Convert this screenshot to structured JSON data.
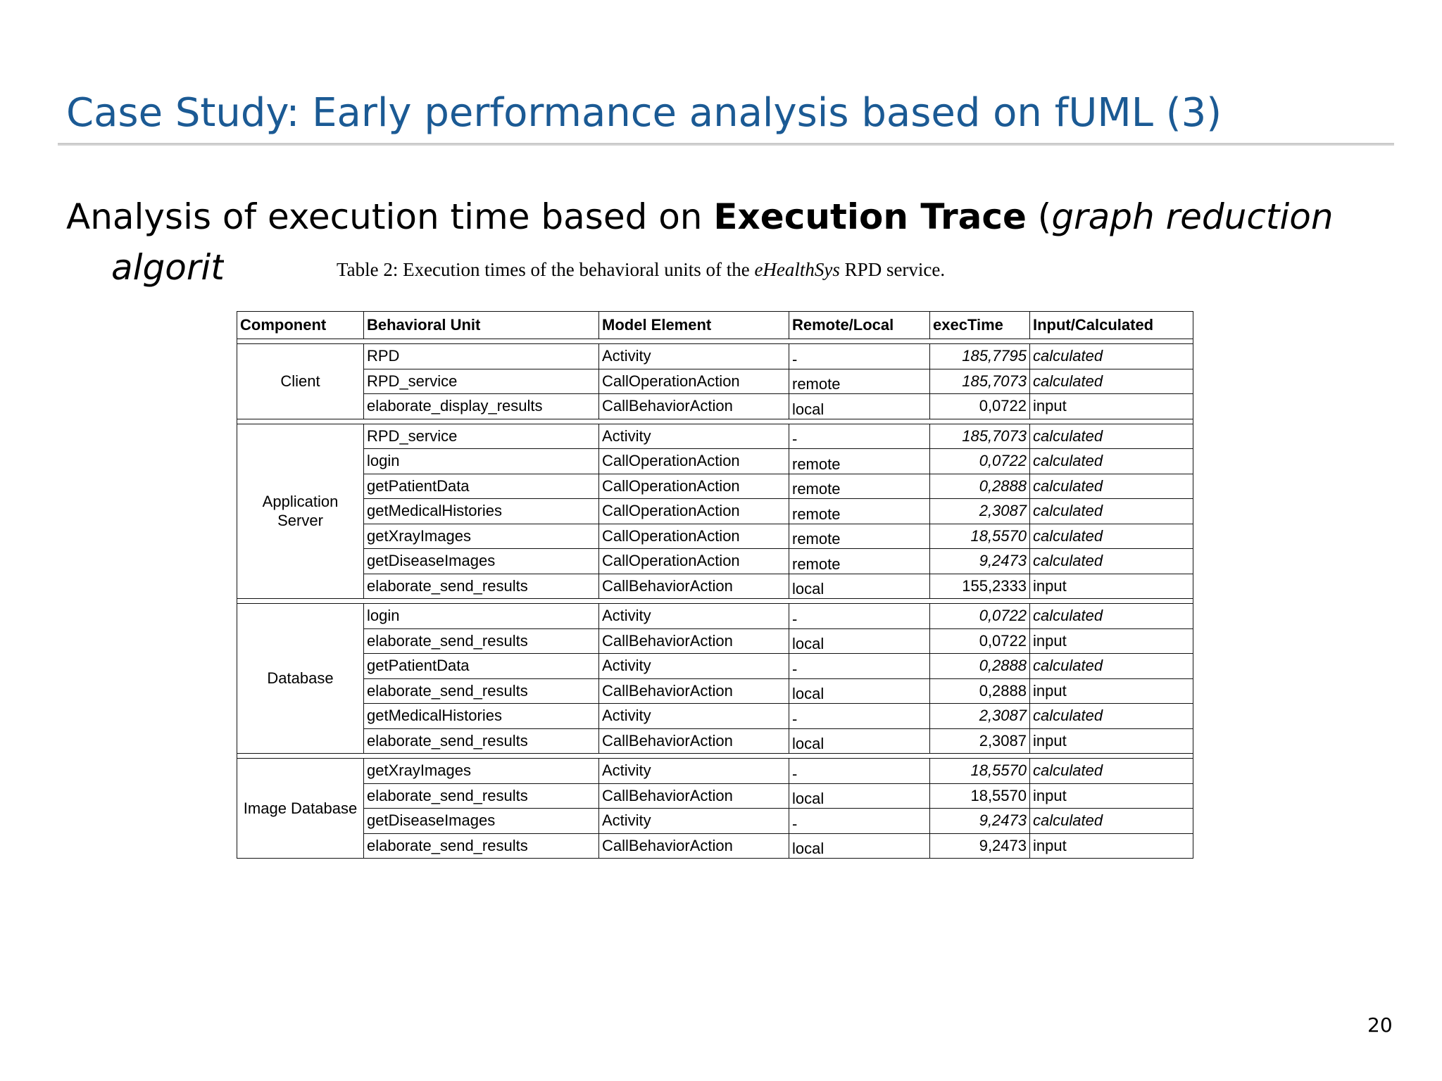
{
  "slide": {
    "title": "Case Study: Early performance analysis based on fUML  (3)",
    "subtitle": {
      "prefix": "Analysis of execution time based on ",
      "bold": "Execution Trace",
      "open_paren": " (",
      "italic": "graph reduction",
      "line2": "algorit"
    },
    "page_number": "20"
  },
  "figure": {
    "caption_prefix": "Table 2: Execution times of the behavioral units of the ",
    "caption_italic": "eHealthSys",
    "caption_suffix": " RPD service.",
    "headers": [
      "Component",
      "Behavioral Unit",
      "Model Element",
      "Remote/Local",
      "execTime",
      "Input/Calculated"
    ],
    "groups": [
      {
        "component": "Client",
        "rows": [
          {
            "unit": "RPD",
            "element": "Activity",
            "rl": "-",
            "time": "185,7795",
            "ic": "calculated"
          },
          {
            "unit": "RPD_service",
            "element": "CallOperationAction",
            "rl": "remote",
            "time": "185,7073",
            "ic": "calculated"
          },
          {
            "unit": "elaborate_display_results",
            "element": "CallBehaviorAction",
            "rl": "local",
            "time": "0,0722",
            "ic": "input"
          }
        ]
      },
      {
        "component": "Application Server",
        "rows": [
          {
            "unit": "RPD_service",
            "element": "Activity",
            "rl": "-",
            "time": "185,7073",
            "ic": "calculated"
          },
          {
            "unit": "login",
            "element": "CallOperationAction",
            "rl": "remote",
            "time": "0,0722",
            "ic": "calculated"
          },
          {
            "unit": "getPatientData",
            "element": "CallOperationAction",
            "rl": "remote",
            "time": "0,2888",
            "ic": "calculated"
          },
          {
            "unit": "getMedicalHistories",
            "element": "CallOperationAction",
            "rl": "remote",
            "time": "2,3087",
            "ic": "calculated"
          },
          {
            "unit": "getXrayImages",
            "element": "CallOperationAction",
            "rl": "remote",
            "time": "18,5570",
            "ic": "calculated"
          },
          {
            "unit": "getDiseaseImages",
            "element": "CallOperationAction",
            "rl": "remote",
            "time": "9,2473",
            "ic": "calculated"
          },
          {
            "unit": "elaborate_send_results",
            "element": "CallBehaviorAction",
            "rl": "local",
            "time": "155,2333",
            "ic": "input"
          }
        ]
      },
      {
        "component": "Database",
        "rows": [
          {
            "unit": "login",
            "element": "Activity",
            "rl": "-",
            "time": "0,0722",
            "ic": "calculated"
          },
          {
            "unit": "elaborate_send_results",
            "element": "CallBehaviorAction",
            "rl": "local",
            "time": "0,0722",
            "ic": "input"
          },
          {
            "unit": "getPatientData",
            "element": "Activity",
            "rl": "-",
            "time": "0,2888",
            "ic": "calculated"
          },
          {
            "unit": "elaborate_send_results",
            "element": "CallBehaviorAction",
            "rl": "local",
            "time": "0,2888",
            "ic": "input"
          },
          {
            "unit": "getMedicalHistories",
            "element": "Activity",
            "rl": "-",
            "time": "2,3087",
            "ic": "calculated"
          },
          {
            "unit": "elaborate_send_results",
            "element": "CallBehaviorAction",
            "rl": "local",
            "time": "2,3087",
            "ic": "input"
          }
        ]
      },
      {
        "component": "Image Database",
        "rows": [
          {
            "unit": "getXrayImages",
            "element": "Activity",
            "rl": "-",
            "time": "18,5570",
            "ic": "calculated"
          },
          {
            "unit": "elaborate_send_results",
            "element": "CallBehaviorAction",
            "rl": "local",
            "time": "18,5570",
            "ic": "input"
          },
          {
            "unit": "getDiseaseImages",
            "element": "Activity",
            "rl": "-",
            "time": "9,2473",
            "ic": "calculated"
          },
          {
            "unit": "elaborate_send_results",
            "element": "CallBehaviorAction",
            "rl": "local",
            "time": "9,2473",
            "ic": "input"
          }
        ]
      }
    ]
  }
}
